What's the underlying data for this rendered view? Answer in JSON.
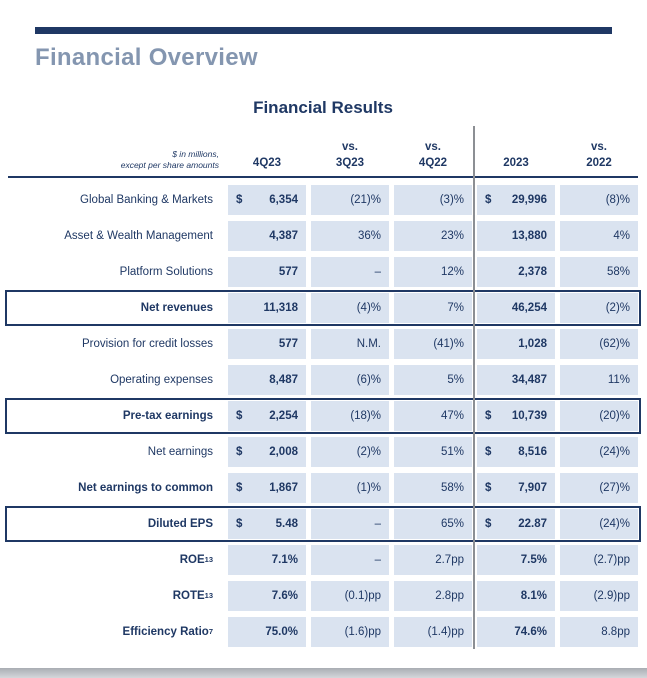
{
  "page": {
    "title": "Financial Overview"
  },
  "colors": {
    "navy": "#1f3864",
    "title_steel": "#8496b0",
    "cell_blue": "#dae3f0",
    "divider_gray": "#8c8f94"
  },
  "table": {
    "title": "Financial Results",
    "note": "$ in millions,\nexcept per share amounts",
    "columns": [
      "4Q23",
      "vs.\n3Q23",
      "vs.\n4Q22",
      "2023",
      "vs.\n2022"
    ],
    "rows": [
      {
        "label": "Global Banking & Markets",
        "sup": "",
        "style": "normal",
        "cells": [
          {
            "d": "$",
            "v": "6,354"
          },
          {
            "d": "",
            "v": "(21)%"
          },
          {
            "d": "",
            "v": "(3)%"
          },
          {
            "d": "$",
            "v": "29,996"
          },
          {
            "d": "",
            "v": "(8)%"
          }
        ]
      },
      {
        "label": "Asset & Wealth Management",
        "sup": "",
        "style": "normal",
        "cells": [
          {
            "d": "",
            "v": "4,387"
          },
          {
            "d": "",
            "v": "36%"
          },
          {
            "d": "",
            "v": "23%"
          },
          {
            "d": "",
            "v": "13,880"
          },
          {
            "d": "",
            "v": "4%"
          }
        ]
      },
      {
        "label": "Platform Solutions",
        "sup": "",
        "style": "normal",
        "cells": [
          {
            "d": "",
            "v": "577"
          },
          {
            "d": "",
            "v": "–"
          },
          {
            "d": "",
            "v": "12%"
          },
          {
            "d": "",
            "v": "2,378"
          },
          {
            "d": "",
            "v": "58%"
          }
        ]
      },
      {
        "label": "Net revenues",
        "sup": "",
        "style": "boxed",
        "cells": [
          {
            "d": "",
            "v": "11,318"
          },
          {
            "d": "",
            "v": "(4)%"
          },
          {
            "d": "",
            "v": "7%"
          },
          {
            "d": "",
            "v": "46,254"
          },
          {
            "d": "",
            "v": "(2)%"
          }
        ]
      },
      {
        "label": "Provision for credit losses",
        "sup": "",
        "style": "normal",
        "cells": [
          {
            "d": "",
            "v": "577"
          },
          {
            "d": "",
            "v": "N.M."
          },
          {
            "d": "",
            "v": "(41)%"
          },
          {
            "d": "",
            "v": "1,028"
          },
          {
            "d": "",
            "v": "(62)%"
          }
        ]
      },
      {
        "label": "Operating expenses",
        "sup": "",
        "style": "normal",
        "cells": [
          {
            "d": "",
            "v": "8,487"
          },
          {
            "d": "",
            "v": "(6)%"
          },
          {
            "d": "",
            "v": "5%"
          },
          {
            "d": "",
            "v": "34,487"
          },
          {
            "d": "",
            "v": "11%"
          }
        ]
      },
      {
        "label": "Pre-tax earnings",
        "sup": "",
        "style": "boxed",
        "cells": [
          {
            "d": "$",
            "v": "2,254"
          },
          {
            "d": "",
            "v": "(18)%"
          },
          {
            "d": "",
            "v": "47%"
          },
          {
            "d": "$",
            "v": "10,739"
          },
          {
            "d": "",
            "v": "(20)%"
          }
        ]
      },
      {
        "label": "Net earnings",
        "sup": "",
        "style": "normal",
        "cells": [
          {
            "d": "$",
            "v": "2,008"
          },
          {
            "d": "",
            "v": "(2)%"
          },
          {
            "d": "",
            "v": "51%"
          },
          {
            "d": "$",
            "v": "8,516"
          },
          {
            "d": "",
            "v": "(24)%"
          }
        ]
      },
      {
        "label": "Net earnings to common",
        "sup": "",
        "style": "bold",
        "cells": [
          {
            "d": "$",
            "v": "1,867"
          },
          {
            "d": "",
            "v": "(1)%"
          },
          {
            "d": "",
            "v": "58%"
          },
          {
            "d": "$",
            "v": "7,907"
          },
          {
            "d": "",
            "v": "(27)%"
          }
        ]
      },
      {
        "label": "Diluted EPS",
        "sup": "",
        "style": "boxed",
        "cells": [
          {
            "d": "$",
            "v": "5.48"
          },
          {
            "d": "",
            "v": "–"
          },
          {
            "d": "",
            "v": "65%"
          },
          {
            "d": "$",
            "v": "22.87"
          },
          {
            "d": "",
            "v": "(24)%"
          }
        ]
      },
      {
        "label": "ROE",
        "sup": "13",
        "style": "bold",
        "cells": [
          {
            "d": "",
            "v": "7.1%"
          },
          {
            "d": "",
            "v": "–"
          },
          {
            "d": "",
            "v": "2.7pp"
          },
          {
            "d": "",
            "v": "7.5%"
          },
          {
            "d": "",
            "v": "(2.7)pp"
          }
        ]
      },
      {
        "label": "ROTE",
        "sup": "13",
        "style": "bold",
        "cells": [
          {
            "d": "",
            "v": "7.6%"
          },
          {
            "d": "",
            "v": "(0.1)pp"
          },
          {
            "d": "",
            "v": "2.8pp"
          },
          {
            "d": "",
            "v": "8.1%"
          },
          {
            "d": "",
            "v": "(2.9)pp"
          }
        ]
      },
      {
        "label": "Efficiency Ratio",
        "sup": "7",
        "style": "bold",
        "cells": [
          {
            "d": "",
            "v": "75.0%"
          },
          {
            "d": "",
            "v": "(1.6)pp"
          },
          {
            "d": "",
            "v": "(1.4)pp"
          },
          {
            "d": "",
            "v": "74.6%"
          },
          {
            "d": "",
            "v": "8.8pp"
          }
        ]
      }
    ]
  }
}
